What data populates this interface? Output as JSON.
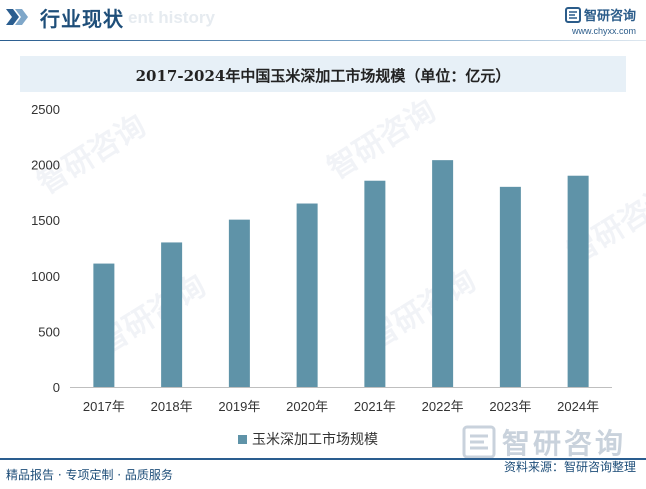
{
  "header": {
    "title": "行业现状",
    "bg_text": "ent history",
    "brand_name": "智研咨询",
    "brand_url": "www.chyxx.com"
  },
  "watermark_text": "智研咨询",
  "chart_data": {
    "type": "bar",
    "title": "2017-2024年中国玉米深加工市场规模（单位：亿元）",
    "categories": [
      "2017年",
      "2018年",
      "2019年",
      "2020年",
      "2021年",
      "2022年",
      "2023年",
      "2024年"
    ],
    "series": [
      {
        "name": "玉米深加工市场规模",
        "values": [
          1110,
          1300,
          1505,
          1650,
          1855,
          2040,
          1800,
          1900
        ]
      }
    ],
    "ylim": [
      0,
      2500
    ],
    "yticks": [
      0,
      500,
      1000,
      1500,
      2000,
      2500
    ],
    "bar_color": "#5f93a8",
    "legend_position": "bottom"
  },
  "footer": {
    "left_text": "精品报告 · 专项定制 · 品质服务",
    "source_text": "资料来源：智研咨询整理",
    "brand_name": "智研咨询"
  }
}
